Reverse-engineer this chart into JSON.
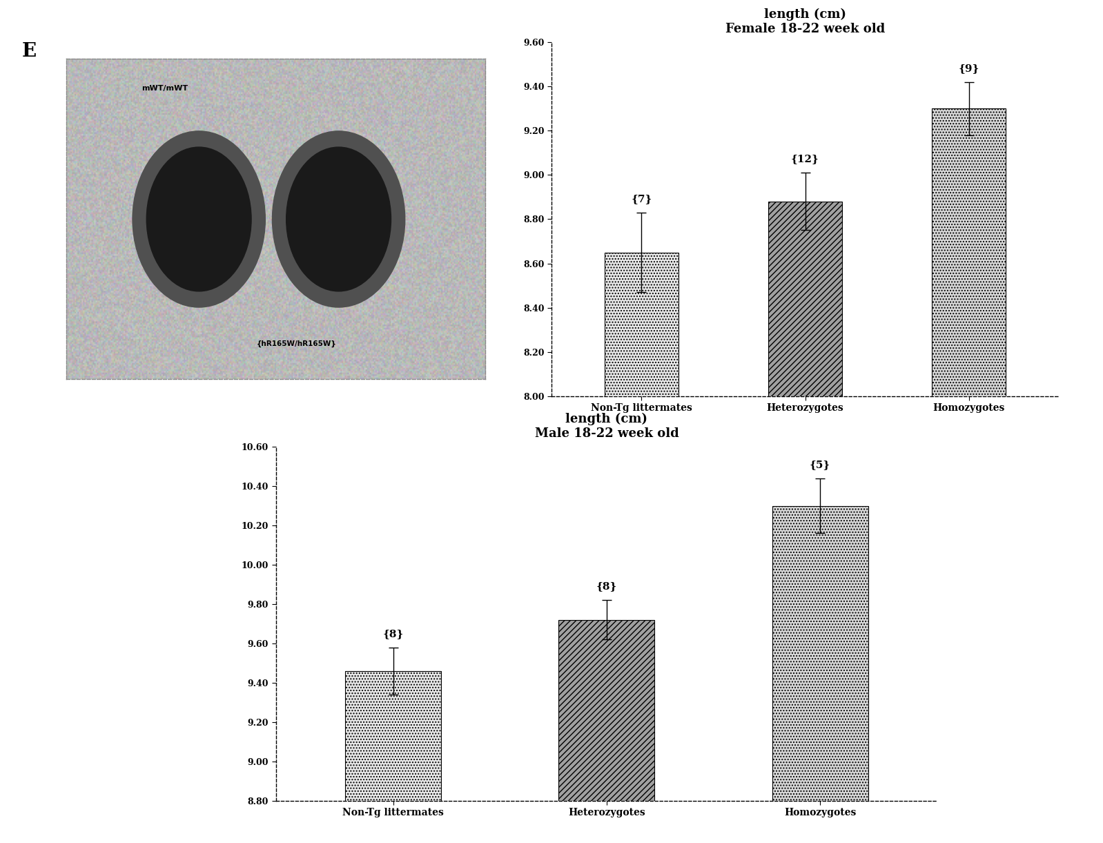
{
  "female": {
    "title_line1": "length (cm)",
    "title_line2": "Female 18-22 week old",
    "categories": [
      "Non-Tg littermates",
      "Heterozygotes",
      "Homozygotes"
    ],
    "values": [
      8.65,
      8.88,
      9.3
    ],
    "errors": [
      0.18,
      0.13,
      0.12
    ],
    "ns": [
      7,
      12,
      9
    ],
    "ylim": [
      8.0,
      9.6
    ],
    "yticks": [
      8.0,
      8.2,
      8.4,
      8.6,
      8.8,
      9.0,
      9.2,
      9.4,
      9.6
    ]
  },
  "male": {
    "title_line1": "length (cm)",
    "title_line2": "Male 18-22 week old",
    "categories": [
      "Non-Tg littermates",
      "Heterozygotes",
      "Homozygotes"
    ],
    "values": [
      9.46,
      9.72,
      10.3
    ],
    "errors": [
      0.12,
      0.1,
      0.14
    ],
    "ns": [
      8,
      8,
      5
    ],
    "ylim": [
      8.8,
      10.6
    ],
    "yticks": [
      8.8,
      9.0,
      9.2,
      9.4,
      9.6,
      9.8,
      10.0,
      10.2,
      10.4,
      10.6
    ]
  },
  "hatches": [
    "....",
    "////",
    "...."
  ],
  "bar_facecolors": [
    "#e8e8e8",
    "#a0a0a0",
    "#d8d8d8"
  ],
  "background_color": "#ffffff",
  "panel_label": "E",
  "image_text_top": "mWT/mWT",
  "image_text_bottom": "{hR165W/hR165W}"
}
